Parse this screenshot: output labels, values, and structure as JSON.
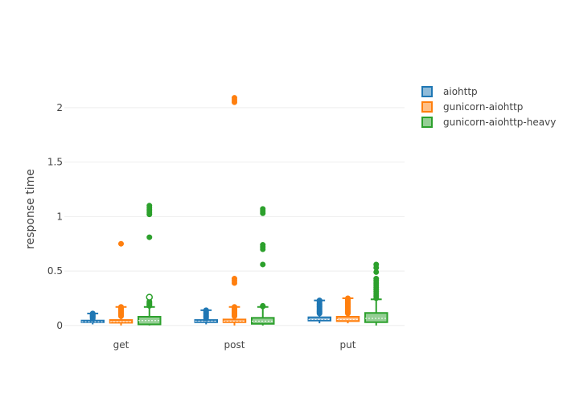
{
  "chart_data": {
    "type": "box",
    "categories": [
      "get",
      "post",
      "put"
    ],
    "ylabel": "response time",
    "ylim": [
      -0.09,
      2.25
    ],
    "yticks": [
      0,
      0.5,
      1,
      1.5,
      2
    ],
    "ytick_labels": [
      "0",
      "0.5",
      "1",
      "1.5",
      "2"
    ],
    "grid": true,
    "legend_position": "top-right",
    "series": [
      {
        "name": "aiohttp",
        "color": "#1f77b4",
        "boxes": [
          {
            "category": "get",
            "min": 0.01,
            "q1": 0.03,
            "median": 0.035,
            "q3": 0.045,
            "max": 0.11,
            "outliers": [
              0.06,
              0.07,
              0.075,
              0.08,
              0.085,
              0.09,
              0.095,
              0.1,
              0.105,
              0.11
            ]
          },
          {
            "category": "post",
            "min": 0.01,
            "q1": 0.03,
            "median": 0.04,
            "q3": 0.05,
            "max": 0.14,
            "outliers": [
              0.065,
              0.075,
              0.085,
              0.095,
              0.105,
              0.115,
              0.125,
              0.135,
              0.14
            ]
          },
          {
            "category": "put",
            "min": 0.02,
            "q1": 0.045,
            "median": 0.055,
            "q3": 0.075,
            "max": 0.23,
            "outliers": [
              0.11,
              0.12,
              0.13,
              0.14,
              0.15,
              0.16,
              0.17,
              0.18,
              0.19,
              0.2,
              0.215,
              0.23
            ]
          }
        ]
      },
      {
        "name": "gunicorn-aiohttp",
        "color": "#ff7f0e",
        "boxes": [
          {
            "category": "get",
            "min": 0.0,
            "q1": 0.025,
            "median": 0.035,
            "q3": 0.05,
            "max": 0.17,
            "outliers": [
              0.085,
              0.095,
              0.105,
              0.115,
              0.125,
              0.135,
              0.145,
              0.155,
              0.165,
              0.17,
              0.75
            ]
          },
          {
            "category": "post",
            "min": 0.0,
            "q1": 0.03,
            "median": 0.04,
            "q3": 0.055,
            "max": 0.17,
            "outliers": [
              0.085,
              0.095,
              0.105,
              0.115,
              0.125,
              0.135,
              0.145,
              0.16,
              0.17,
              0.39,
              0.41,
              0.43,
              2.05,
              2.07,
              2.09
            ]
          },
          {
            "category": "put",
            "min": 0.02,
            "q1": 0.04,
            "median": 0.055,
            "q3": 0.08,
            "max": 0.25,
            "outliers": [
              0.11,
              0.12,
              0.13,
              0.14,
              0.15,
              0.16,
              0.17,
              0.18,
              0.19,
              0.2,
              0.21,
              0.22,
              0.23,
              0.24,
              0.25
            ]
          }
        ]
      },
      {
        "name": "gunicorn-aiohttp-heavy",
        "color": "#2ca02c",
        "boxes": [
          {
            "category": "get",
            "min": 0.0,
            "q1": 0.01,
            "median": 0.045,
            "q3": 0.08,
            "max": 0.17,
            "outliers": [
              0.18,
              0.19,
              0.2,
              0.21,
              0.22,
              0.26,
              0.81,
              1.02,
              1.04,
              1.06,
              1.08,
              1.1
            ]
          },
          {
            "category": "post",
            "min": 0.0,
            "q1": 0.015,
            "median": 0.04,
            "q3": 0.07,
            "max": 0.17,
            "outliers": [
              0.175,
              0.18,
              0.56,
              0.7,
              0.72,
              0.74,
              1.03,
              1.05,
              1.07
            ]
          },
          {
            "category": "put",
            "min": 0.0,
            "q1": 0.03,
            "median": 0.065,
            "q3": 0.115,
            "max": 0.24,
            "outliers": [
              0.25,
              0.27,
              0.29,
              0.31,
              0.33,
              0.35,
              0.37,
              0.39,
              0.41,
              0.43,
              0.49,
              0.53,
              0.56
            ]
          }
        ]
      }
    ]
  }
}
